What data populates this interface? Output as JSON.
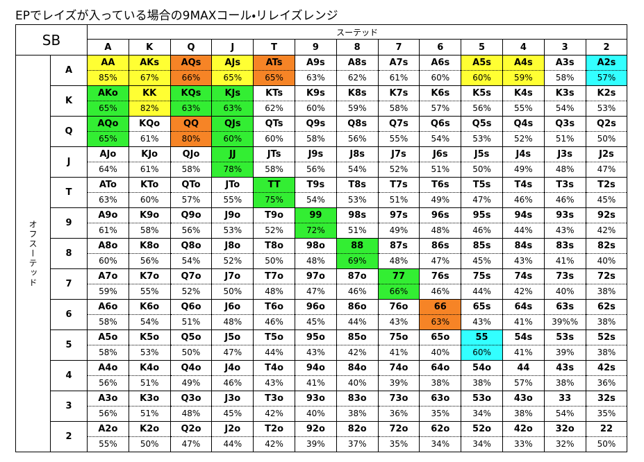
{
  "header": {
    "title": "EPでレイズが入っている場合の9MAXコール・リレイズレンジ"
  },
  "table": {
    "corner": "SB",
    "column_group": "スーテッド",
    "row_group": "オフスーテッド",
    "columns": [
      "A",
      "K",
      "Q",
      "J",
      "T",
      "9",
      "8",
      "7",
      "6",
      "5",
      "4",
      "3",
      "2"
    ],
    "rows": [
      {
        "label": "A",
        "cells": [
          {
            "h": "AA",
            "p": "85%",
            "c": "#ffff33"
          },
          {
            "h": "AKs",
            "p": "67%",
            "c": "#ffff33"
          },
          {
            "h": "AQs",
            "p": "66%",
            "c": "#f68426"
          },
          {
            "h": "AJs",
            "p": "65%",
            "c": "#ffff33"
          },
          {
            "h": "ATs",
            "p": "65%",
            "c": "#f68426"
          },
          {
            "h": "A9s",
            "p": "63%"
          },
          {
            "h": "A8s",
            "p": "62%"
          },
          {
            "h": "A7s",
            "p": "61%"
          },
          {
            "h": "A6s",
            "p": "60%"
          },
          {
            "h": "A5s",
            "p": "60%",
            "c": "#ffff33"
          },
          {
            "h": "A4s",
            "p": "59%",
            "c": "#ffff33"
          },
          {
            "h": "A3s",
            "p": "58%"
          },
          {
            "h": "A2s",
            "p": "57%",
            "c": "#33ffff"
          }
        ]
      },
      {
        "label": "K",
        "cells": [
          {
            "h": "AKo",
            "p": "65%",
            "c": "#33ee33"
          },
          {
            "h": "KK",
            "p": "82%",
            "c": "#ffff33"
          },
          {
            "h": "KQs",
            "p": "63%",
            "c": "#33ee33"
          },
          {
            "h": "KJs",
            "p": "63%",
            "c": "#33ee33"
          },
          {
            "h": "KTs",
            "p": "62%"
          },
          {
            "h": "K9s",
            "p": "60%"
          },
          {
            "h": "K8s",
            "p": "59%"
          },
          {
            "h": "K7s",
            "p": "58%"
          },
          {
            "h": "K6s",
            "p": "57%"
          },
          {
            "h": "K5s",
            "p": "56%"
          },
          {
            "h": "K4s",
            "p": "55%"
          },
          {
            "h": "K3s",
            "p": "54%"
          },
          {
            "h": "K2s",
            "p": "53%"
          }
        ]
      },
      {
        "label": "Q",
        "cells": [
          {
            "h": "AQo",
            "p": "65%",
            "c": "#33ee33"
          },
          {
            "h": "KQo",
            "p": "61%"
          },
          {
            "h": "QQ",
            "p": "80%",
            "c": "#f68426"
          },
          {
            "h": "QJs",
            "p": "60%",
            "c": "#33ee33"
          },
          {
            "h": "QTs",
            "p": "60%"
          },
          {
            "h": "Q9s",
            "p": "58%"
          },
          {
            "h": "Q8s",
            "p": "56%"
          },
          {
            "h": "Q7s",
            "p": "55%"
          },
          {
            "h": "Q6s",
            "p": "54%"
          },
          {
            "h": "Q5s",
            "p": "53%"
          },
          {
            "h": "Q4s",
            "p": "52%"
          },
          {
            "h": "Q3s",
            "p": "51%"
          },
          {
            "h": "Q2s",
            "p": "50%"
          }
        ]
      },
      {
        "label": "J",
        "cells": [
          {
            "h": "AJo",
            "p": "64%"
          },
          {
            "h": "KJo",
            "p": "61%"
          },
          {
            "h": "QJo",
            "p": "58%"
          },
          {
            "h": "JJ",
            "p": "78%",
            "c": "#33ee33"
          },
          {
            "h": "JTs",
            "p": "58%"
          },
          {
            "h": "J9s",
            "p": "56%"
          },
          {
            "h": "J8s",
            "p": "54%"
          },
          {
            "h": "J7s",
            "p": "52%"
          },
          {
            "h": "J6s",
            "p": "51%"
          },
          {
            "h": "J5s",
            "p": "50%"
          },
          {
            "h": "J4s",
            "p": "49%"
          },
          {
            "h": "J3s",
            "p": "48%"
          },
          {
            "h": "J2s",
            "p": "47%"
          }
        ]
      },
      {
        "label": "T",
        "cells": [
          {
            "h": "ATo",
            "p": "63%"
          },
          {
            "h": "KTo",
            "p": "60%"
          },
          {
            "h": "QTo",
            "p": "57%"
          },
          {
            "h": "JTo",
            "p": "55%"
          },
          {
            "h": "TT",
            "p": "75%",
            "c": "#33ee33"
          },
          {
            "h": "T9s",
            "p": "54%"
          },
          {
            "h": "T8s",
            "p": "53%"
          },
          {
            "h": "T7s",
            "p": "51%"
          },
          {
            "h": "T6s",
            "p": "49%"
          },
          {
            "h": "T5s",
            "p": "47%"
          },
          {
            "h": "T4s",
            "p": "46%"
          },
          {
            "h": "T3s",
            "p": "46%"
          },
          {
            "h": "T2s",
            "p": "45%"
          }
        ]
      },
      {
        "label": "9",
        "cells": [
          {
            "h": "A9o",
            "p": "61%"
          },
          {
            "h": "K9o",
            "p": "58%"
          },
          {
            "h": "Q9o",
            "p": "56%"
          },
          {
            "h": "J9o",
            "p": "53%"
          },
          {
            "h": "T9o",
            "p": "52%"
          },
          {
            "h": "99",
            "p": "72%",
            "c": "#33ee33"
          },
          {
            "h": "98s",
            "p": "51%"
          },
          {
            "h": "97s",
            "p": "49%"
          },
          {
            "h": "96s",
            "p": "48%"
          },
          {
            "h": "95s",
            "p": "46%"
          },
          {
            "h": "94s",
            "p": "44%"
          },
          {
            "h": "93s",
            "p": "43%"
          },
          {
            "h": "92s",
            "p": "42%"
          }
        ]
      },
      {
        "label": "8",
        "cells": [
          {
            "h": "A8o",
            "p": "60%"
          },
          {
            "h": "K8o",
            "p": "56%"
          },
          {
            "h": "Q8o",
            "p": "54%"
          },
          {
            "h": "J8o",
            "p": "52%"
          },
          {
            "h": "T8o",
            "p": "50%"
          },
          {
            "h": "98o",
            "p": "48%"
          },
          {
            "h": "88",
            "p": "69%",
            "c": "#33ee33"
          },
          {
            "h": "87s",
            "p": "48%"
          },
          {
            "h": "86s",
            "p": "47%"
          },
          {
            "h": "85s",
            "p": "45%"
          },
          {
            "h": "84s",
            "p": "43%"
          },
          {
            "h": "83s",
            "p": "41%"
          },
          {
            "h": "82s",
            "p": "40%"
          }
        ]
      },
      {
        "label": "7",
        "cells": [
          {
            "h": "A7o",
            "p": "59%"
          },
          {
            "h": "K7o",
            "p": "55%"
          },
          {
            "h": "Q7o",
            "p": "52%"
          },
          {
            "h": "J7o",
            "p": "50%"
          },
          {
            "h": "T7o",
            "p": "48%"
          },
          {
            "h": "97o",
            "p": "47%"
          },
          {
            "h": "87o",
            "p": "46%"
          },
          {
            "h": "77",
            "p": "66%",
            "c": "#33ee33"
          },
          {
            "h": "76s",
            "p": "46%"
          },
          {
            "h": "75s",
            "p": "44%"
          },
          {
            "h": "74s",
            "p": "42%"
          },
          {
            "h": "73s",
            "p": "40%"
          },
          {
            "h": "72s",
            "p": "38%"
          }
        ]
      },
      {
        "label": "6",
        "cells": [
          {
            "h": "A6o",
            "p": "58%"
          },
          {
            "h": "K6o",
            "p": "54%"
          },
          {
            "h": "Q6o",
            "p": "51%"
          },
          {
            "h": "J6o",
            "p": "48%"
          },
          {
            "h": "T6o",
            "p": "46%"
          },
          {
            "h": "96o",
            "p": "45%"
          },
          {
            "h": "86o",
            "p": "44%"
          },
          {
            "h": "76o",
            "p": "43%"
          },
          {
            "h": "66",
            "p": "63%",
            "c": "#f68426"
          },
          {
            "h": "65s",
            "p": "43%"
          },
          {
            "h": "64s",
            "p": "41%"
          },
          {
            "h": "63s",
            "p": "39%%"
          },
          {
            "h": "62s",
            "p": "38%"
          }
        ]
      },
      {
        "label": "5",
        "cells": [
          {
            "h": "A5o",
            "p": "58%"
          },
          {
            "h": "K5o",
            "p": "53%"
          },
          {
            "h": "Q5o",
            "p": "50%"
          },
          {
            "h": "J5o",
            "p": "47%"
          },
          {
            "h": "T5o",
            "p": "44%"
          },
          {
            "h": "95o",
            "p": "43%"
          },
          {
            "h": "85o",
            "p": "42%"
          },
          {
            "h": "75o",
            "p": "41%"
          },
          {
            "h": "65o",
            "p": "40%"
          },
          {
            "h": "55",
            "p": "60%",
            "c": "#33ffff"
          },
          {
            "h": "54s",
            "p": "41%"
          },
          {
            "h": "53s",
            "p": "39%"
          },
          {
            "h": "52s",
            "p": "38%"
          }
        ]
      },
      {
        "label": "4",
        "cells": [
          {
            "h": "A4o",
            "p": "56%"
          },
          {
            "h": "K4o",
            "p": "51%"
          },
          {
            "h": "Q4o",
            "p": "49%"
          },
          {
            "h": "J4o",
            "p": "46%"
          },
          {
            "h": "T4o",
            "p": "43%"
          },
          {
            "h": "94o",
            "p": "41%"
          },
          {
            "h": "84o",
            "p": "40%"
          },
          {
            "h": "74o",
            "p": "39%"
          },
          {
            "h": "64o",
            "p": "38%"
          },
          {
            "h": "54o",
            "p": "38%"
          },
          {
            "h": "44",
            "p": "57%"
          },
          {
            "h": "43s",
            "p": "38%"
          },
          {
            "h": "42s",
            "p": "36%"
          }
        ]
      },
      {
        "label": "3",
        "cells": [
          {
            "h": "A3o",
            "p": "56%"
          },
          {
            "h": "K3o",
            "p": "51%"
          },
          {
            "h": "Q3o",
            "p": "48%"
          },
          {
            "h": "J3o",
            "p": "45%"
          },
          {
            "h": "T3o",
            "p": "42%"
          },
          {
            "h": "93o",
            "p": "40%"
          },
          {
            "h": "83o",
            "p": "38%"
          },
          {
            "h": "73o",
            "p": "36%"
          },
          {
            "h": "63o",
            "p": "35%"
          },
          {
            "h": "53o",
            "p": "34%"
          },
          {
            "h": "43o",
            "p": "38%"
          },
          {
            "h": "33",
            "p": "54%"
          },
          {
            "h": "32s",
            "p": "35%"
          }
        ]
      },
      {
        "label": "2",
        "cells": [
          {
            "h": "A2o",
            "p": "55%"
          },
          {
            "h": "K2o",
            "p": "50%"
          },
          {
            "h": "Q2o",
            "p": "47%"
          },
          {
            "h": "J2o",
            "p": "44%"
          },
          {
            "h": "T2o",
            "p": "42%"
          },
          {
            "h": "92o",
            "p": "39%"
          },
          {
            "h": "82o",
            "p": "37%"
          },
          {
            "h": "72o",
            "p": "35%"
          },
          {
            "h": "62o",
            "p": "34%"
          },
          {
            "h": "52o",
            "p": "34%"
          },
          {
            "h": "42o",
            "p": "33%"
          },
          {
            "h": "32o",
            "p": "32%"
          },
          {
            "h": "22",
            "p": "50%"
          }
        ]
      }
    ]
  }
}
